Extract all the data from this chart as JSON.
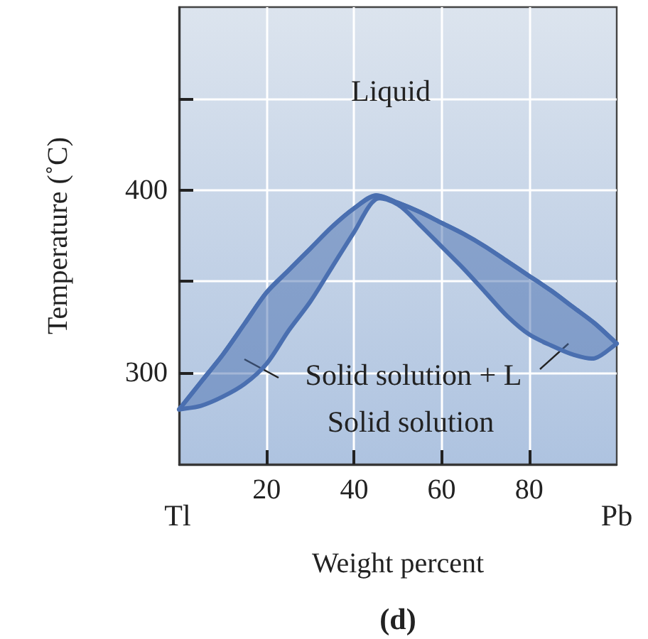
{
  "chart_data": {
    "type": "line",
    "xlabel": "Weight percent",
    "ylabel": "Temperature (˚C)",
    "xlim": [
      0,
      100
    ],
    "xticks": [
      20,
      40,
      60,
      80
    ],
    "ylim": [
      250,
      500
    ],
    "yticks": [
      300,
      {
        "value": 350,
        "label": null
      },
      400,
      {
        "value": 450,
        "label": null
      }
    ],
    "grid": true,
    "x": [
      0,
      5,
      10,
      15,
      20,
      25,
      30,
      35,
      40,
      45,
      50,
      55,
      60,
      65,
      70,
      75,
      80,
      85,
      90,
      95,
      100
    ],
    "series": [
      {
        "color": "#4a6fb0",
        "values": [
          280,
          295,
          310,
          327,
          344,
          356,
          368,
          380,
          390,
          397,
          393,
          388,
          382,
          376,
          369,
          361,
          353,
          345,
          336,
          327,
          316
        ],
        "lower": [
          280,
          282,
          287,
          294,
          305,
          323,
          339,
          358,
          377,
          395,
          392,
          381,
          369,
          357,
          344,
          331,
          321,
          315,
          310,
          308,
          316
        ],
        "upper": [
          280,
          295,
          310,
          327,
          344,
          356,
          368,
          380,
          390,
          397,
          393,
          388,
          382,
          376,
          369,
          361,
          353,
          345,
          336,
          327,
          316
        ]
      }
    ],
    "annotations": [
      "Liquid",
      "Solid solution + L",
      "Solid solution",
      "Tl",
      "Pb",
      "(d)"
    ]
  }
}
